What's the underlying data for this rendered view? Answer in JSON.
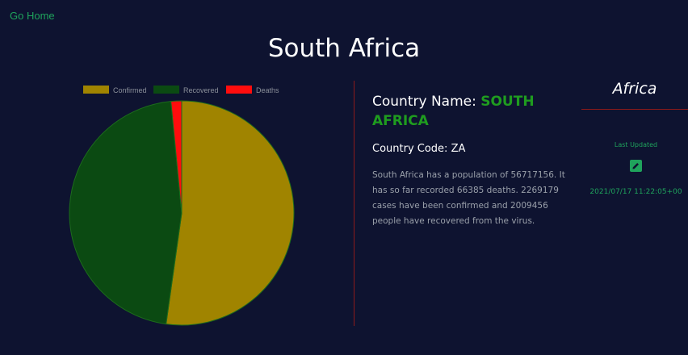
{
  "nav": {
    "go_home": "Go Home"
  },
  "page": {
    "title": "South Africa"
  },
  "country": {
    "name_label": "Country Name:",
    "name_value": "SOUTH AFRICA",
    "code_line": "Country Code: ZA",
    "summary": "South Africa has a population of 56717156. It has so far recorded 66385 deaths. 2269179 cases have been confirmed and 2009456 people have recovered from the virus."
  },
  "region": {
    "name": "Africa",
    "last_updated_label": "Last Updated",
    "timestamp": "2021/07/17 11:22:05+00",
    "edit_icon": "edit-icon"
  },
  "colors": {
    "background": "#0e1330",
    "accent_green": "#1fa35c",
    "divider": "#8b1a1a"
  },
  "chart_data": {
    "type": "pie",
    "categories": [
      "Confirmed",
      "Recovered",
      "Deaths"
    ],
    "values": [
      2269179,
      2009456,
      66385
    ],
    "colors": [
      "#a08400",
      "#0b4a12",
      "#ff0d0d"
    ],
    "legend": "top"
  }
}
